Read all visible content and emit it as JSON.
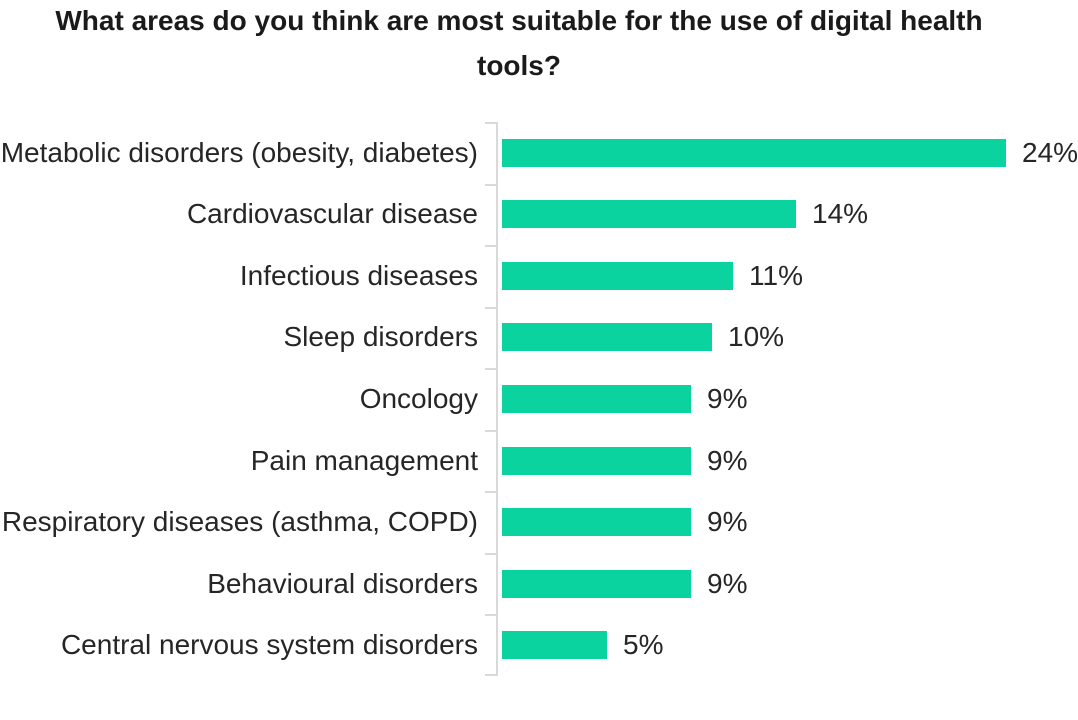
{
  "colors": {
    "bar": "#0bd3a0",
    "axis": "#d9d9d9",
    "text": "#262626",
    "title": "#1a1a1a",
    "background": "#ffffff"
  },
  "chart_data": {
    "type": "bar",
    "orientation": "horizontal",
    "title": "What areas do you think are most suitable for the use of digital health tools?",
    "title_lines": [
      "What areas do you think are most suitable for the use of digital health",
      "tools?"
    ],
    "categories": [
      "Metabolic disorders (obesity, diabetes)",
      "Cardiovascular disease",
      "Infectious diseases",
      "Sleep disorders",
      "Oncology",
      "Pain management",
      "Respiratory diseases (asthma, COPD)",
      "Behavioural disorders",
      "Central nervous system disorders"
    ],
    "values": [
      24,
      14,
      11,
      10,
      9,
      9,
      9,
      9,
      5
    ],
    "value_labels": [
      "24%",
      "14%",
      "11%",
      "10%",
      "9%",
      "9%",
      "9%",
      "9%",
      "5%"
    ],
    "xlabel": "",
    "ylabel": "",
    "xlim": [
      0,
      25
    ],
    "grid": false,
    "legend": false,
    "notes": "category axis on left with tick marks at row boundaries; value labels at bar ends; first category label and first value label are clipped by the image edges"
  }
}
